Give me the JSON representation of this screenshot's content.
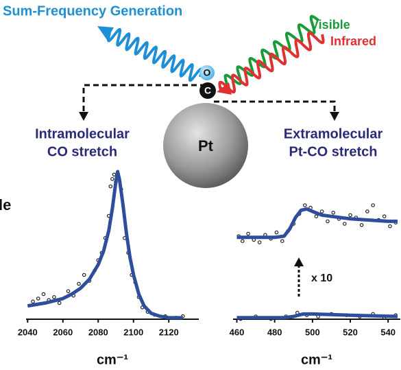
{
  "diagram": {
    "sfg_label": "Sum-Frequency Generation",
    "visible_label": "Visible",
    "infrared_label": "Infrared",
    "o_atom": "O",
    "c_atom": "C",
    "pt_label": "Pt",
    "left_label": [
      "Intramolecular",
      "CO stretch"
    ],
    "right_label": [
      "Extramolecular",
      "Pt-CO stretch"
    ],
    "cut_text": "le"
  },
  "chart_data": [
    {
      "type": "line",
      "xlabel": "cm⁻¹",
      "xlim": [
        2036,
        2130
      ],
      "xticks": [
        2040,
        2060,
        2080,
        2100,
        2120
      ],
      "ylim": [
        0,
        1
      ],
      "series": [
        {
          "mode": "markers",
          "color": "#222222",
          "x": [
            2043,
            2046,
            2049,
            2052,
            2055,
            2058,
            2063,
            2066,
            2069,
            2072,
            2075,
            2078,
            2080,
            2082,
            2084,
            2086,
            2087,
            2088,
            2089,
            2090,
            2093,
            2095,
            2097,
            2099,
            2101,
            2103,
            2105,
            2108,
            2112,
            2118,
            2124,
            2128
          ],
          "values": [
            0.12,
            0.14,
            0.17,
            0.13,
            0.15,
            0.11,
            0.19,
            0.16,
            0.24,
            0.3,
            0.26,
            0.33,
            0.4,
            0.45,
            0.55,
            0.7,
            0.9,
            0.95,
            0.98,
            0.93,
            0.88,
            0.55,
            0.45,
            0.3,
            0.25,
            0.15,
            0.08,
            0.05,
            0.03,
            0.02,
            0.01,
            0.02
          ]
        },
        {
          "mode": "line",
          "color": "#2e4d9b",
          "x": [
            2040,
            2050,
            2060,
            2065,
            2070,
            2075,
            2080,
            2083,
            2086,
            2088,
            2090,
            2091,
            2092,
            2094,
            2096,
            2098,
            2100,
            2103,
            2106,
            2110,
            2115,
            2120,
            2128
          ],
          "values": [
            0.09,
            0.11,
            0.14,
            0.17,
            0.21,
            0.27,
            0.37,
            0.46,
            0.6,
            0.75,
            0.93,
            1.0,
            0.95,
            0.78,
            0.58,
            0.42,
            0.3,
            0.17,
            0.09,
            0.04,
            0.02,
            0.01,
            0.01
          ]
        }
      ]
    },
    {
      "type": "line",
      "xlabel": "cm⁻¹",
      "xlim": [
        458,
        545
      ],
      "xticks": [
        460,
        480,
        500,
        520,
        540
      ],
      "ylim": [
        0,
        1
      ],
      "annotation": "x 10",
      "series": [
        {
          "mode": "markers",
          "color": "#222222",
          "x": [
            461,
            463,
            466,
            469,
            472,
            475,
            478,
            481,
            484,
            487,
            490,
            493,
            496,
            499,
            502,
            505,
            508,
            511,
            514,
            517,
            520,
            523,
            526,
            529,
            532,
            535,
            538,
            541,
            544
          ],
          "values": [
            0.7,
            0.66,
            0.72,
            0.67,
            0.65,
            0.71,
            0.68,
            0.73,
            0.66,
            0.74,
            0.8,
            0.88,
            0.95,
            0.93,
            0.86,
            0.9,
            0.82,
            0.89,
            0.84,
            0.8,
            0.87,
            0.85,
            0.79,
            0.9,
            0.95,
            0.83,
            0.86,
            0.78,
            0.81
          ]
        },
        {
          "mode": "line",
          "color": "#2e4d9b",
          "x": [
            460,
            470,
            480,
            485,
            488,
            491,
            494,
            497,
            500,
            505,
            510,
            520,
            530,
            540,
            545
          ],
          "values": [
            0.69,
            0.69,
            0.69,
            0.7,
            0.76,
            0.85,
            0.91,
            0.92,
            0.9,
            0.87,
            0.86,
            0.84,
            0.83,
            0.82,
            0.82
          ]
        },
        {
          "mode": "markers",
          "color": "#222222",
          "x": [
            462,
            470,
            478,
            486,
            492,
            497,
            503,
            510,
            518,
            525,
            532,
            538,
            544
          ],
          "values": [
            0.03,
            0.05,
            0.03,
            0.05,
            0.08,
            0.06,
            0.05,
            0.07,
            0.06,
            0.05,
            0.07,
            0.04,
            0.06
          ]
        },
        {
          "mode": "line",
          "color": "#2e4d9b",
          "x": [
            460,
            485,
            490,
            495,
            500,
            520,
            545
          ],
          "values": [
            0.04,
            0.04,
            0.05,
            0.07,
            0.07,
            0.06,
            0.05
          ]
        }
      ]
    }
  ]
}
